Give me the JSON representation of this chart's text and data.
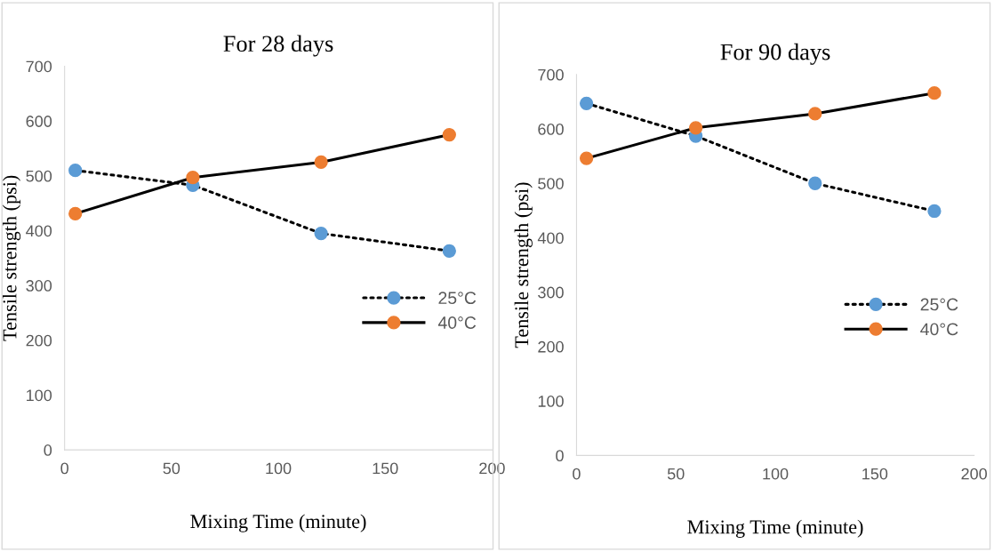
{
  "chart_data": [
    {
      "type": "line",
      "title": "For 28 days",
      "xlabel": "Mixing Time (minute)",
      "ylabel": "Tensile strength (psi)",
      "xlim": [
        0,
        200
      ],
      "xticks": [
        0,
        50,
        100,
        150,
        200
      ],
      "ylim": [
        0,
        700
      ],
      "yticks": [
        0,
        100,
        200,
        300,
        400,
        500,
        600,
        700
      ],
      "grid": false,
      "legend": "right",
      "marker": "circle",
      "x": [
        5,
        60,
        120,
        180
      ],
      "series": [
        {
          "name": "25°C",
          "color": "#5b9bd5",
          "line_style": "dotted",
          "values": [
            510,
            483,
            395,
            363
          ]
        },
        {
          "name": "40°C",
          "color": "#ed7d31",
          "line_style": "solid",
          "values": [
            431,
            497,
            525,
            575
          ]
        }
      ]
    },
    {
      "type": "line",
      "title": "For 90 days",
      "xlabel": "Mixing Time (minute)",
      "ylabel": "Tensile strength (psi)",
      "xlim": [
        0,
        200
      ],
      "xticks": [
        0,
        50,
        100,
        150,
        200
      ],
      "ylim": [
        0,
        700
      ],
      "yticks": [
        0,
        100,
        200,
        300,
        400,
        500,
        600,
        700
      ],
      "grid": false,
      "legend": "right",
      "marker": "circle",
      "x": [
        5,
        60,
        120,
        180
      ],
      "series": [
        {
          "name": "25°C",
          "color": "#5b9bd5",
          "line_style": "dotted",
          "values": [
            647,
            587,
            500,
            449
          ]
        },
        {
          "name": "40°C",
          "color": "#ed7d31",
          "line_style": "solid",
          "values": [
            546,
            602,
            628,
            666
          ]
        }
      ]
    }
  ]
}
